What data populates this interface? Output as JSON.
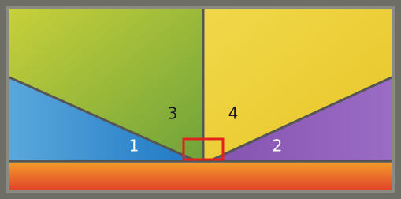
{
  "regions": [
    {
      "label": "1"
    },
    {
      "label": "2"
    },
    {
      "label": "3"
    },
    {
      "label": "4"
    }
  ]
}
